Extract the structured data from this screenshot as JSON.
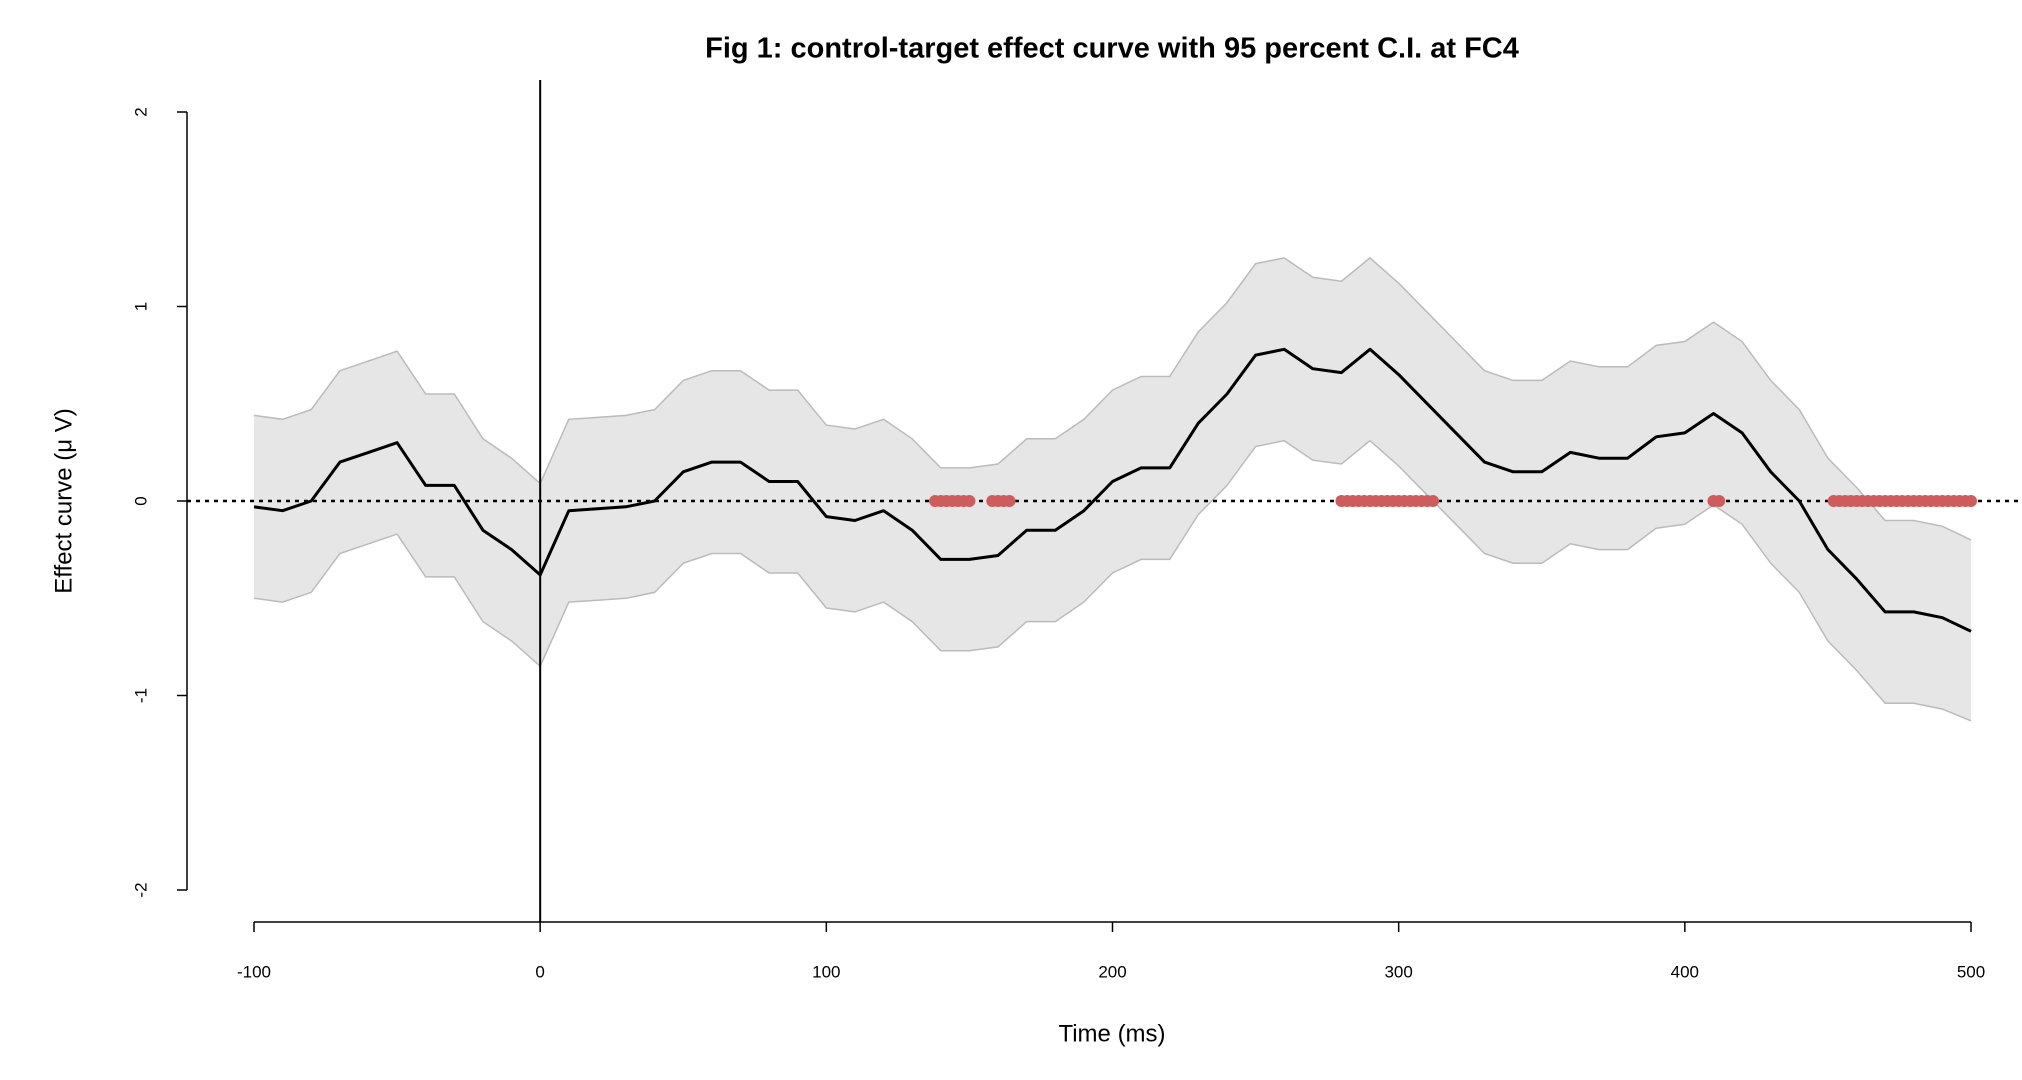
{
  "chart_data": {
    "type": "line",
    "title": "Fig 1: control-target effect curve with 95 percent C.I. at FC4",
    "x_label": "Time (ms)",
    "y_label": "Effect curve (μ V)",
    "x": [
      -100,
      -90,
      -80,
      -70,
      -60,
      -50,
      -40,
      -30,
      -20,
      -10,
      0,
      10,
      20,
      30,
      40,
      50,
      60,
      70,
      80,
      90,
      100,
      110,
      120,
      130,
      140,
      150,
      160,
      170,
      180,
      190,
      200,
      210,
      220,
      230,
      240,
      250,
      260,
      270,
      280,
      290,
      300,
      310,
      320,
      330,
      340,
      350,
      360,
      370,
      380,
      390,
      400,
      410,
      420,
      430,
      440,
      450,
      460,
      470,
      480,
      490,
      500
    ],
    "values": [
      -0.03,
      -0.05,
      0.0,
      0.2,
      0.25,
      0.3,
      0.08,
      0.08,
      -0.15,
      -0.25,
      -0.38,
      -0.05,
      -0.04,
      -0.03,
      0.0,
      0.15,
      0.2,
      0.2,
      0.1,
      0.1,
      -0.08,
      -0.1,
      -0.05,
      -0.15,
      -0.3,
      -0.3,
      -0.28,
      -0.15,
      -0.15,
      -0.05,
      0.1,
      0.17,
      0.17,
      0.4,
      0.55,
      0.75,
      0.78,
      0.68,
      0.66,
      0.78,
      0.65,
      0.5,
      0.35,
      0.2,
      0.15,
      0.15,
      0.25,
      0.22,
      0.22,
      0.33,
      0.35,
      0.45,
      0.35,
      0.15,
      0.0,
      -0.25,
      -0.4,
      -0.57,
      -0.57,
      -0.6,
      -0.67
    ],
    "color": "#000000",
    "ci_upper": [
      0.44,
      0.42,
      0.47,
      0.67,
      0.72,
      0.77,
      0.55,
      0.55,
      0.32,
      0.22,
      0.09,
      0.42,
      0.43,
      0.44,
      0.47,
      0.62,
      0.67,
      0.67,
      0.57,
      0.57,
      0.39,
      0.37,
      0.42,
      0.32,
      0.17,
      0.17,
      0.19,
      0.32,
      0.32,
      0.42,
      0.57,
      0.64,
      0.64,
      0.87,
      1.02,
      1.22,
      1.25,
      1.15,
      1.13,
      1.25,
      1.12,
      0.97,
      0.82,
      0.67,
      0.62,
      0.62,
      0.72,
      0.69,
      0.69,
      0.8,
      0.82,
      0.92,
      0.82,
      0.62,
      0.47,
      0.22,
      0.07,
      -0.1,
      -0.1,
      -0.13,
      -0.2
    ],
    "ci_lower": [
      -0.5,
      -0.52,
      -0.47,
      -0.27,
      -0.22,
      -0.17,
      -0.39,
      -0.39,
      -0.62,
      -0.72,
      -0.85,
      -0.52,
      -0.51,
      -0.5,
      -0.47,
      -0.32,
      -0.27,
      -0.27,
      -0.37,
      -0.37,
      -0.55,
      -0.57,
      -0.52,
      -0.62,
      -0.77,
      -0.77,
      -0.75,
      -0.62,
      -0.62,
      -0.52,
      -0.37,
      -0.3,
      -0.3,
      -0.07,
      0.08,
      0.28,
      0.31,
      0.21,
      0.19,
      0.31,
      0.18,
      0.03,
      -0.12,
      -0.27,
      -0.32,
      -0.32,
      -0.22,
      -0.25,
      -0.25,
      -0.14,
      -0.12,
      -0.02,
      -0.12,
      -0.32,
      -0.47,
      -0.72,
      -0.87,
      -1.04,
      -1.04,
      -1.07,
      -1.13
    ],
    "ci_color": "#e6e6e6",
    "significant": {
      "color": "#cd5c5c",
      "x": [
        138,
        140,
        142,
        144,
        146,
        148,
        150,
        158,
        160,
        162,
        164,
        280,
        282,
        284,
        286,
        288,
        290,
        292,
        294,
        296,
        298,
        300,
        302,
        304,
        306,
        308,
        310,
        312,
        410,
        412,
        452,
        454,
        456,
        458,
        460,
        462,
        464,
        466,
        468,
        470,
        472,
        474,
        476,
        478,
        480,
        482,
        484,
        486,
        488,
        490,
        492,
        494,
        496,
        498,
        500
      ],
      "values": [
        0,
        0,
        0,
        0,
        0,
        0,
        0,
        0,
        0,
        0,
        0,
        0,
        0,
        0,
        0,
        0,
        0,
        0,
        0,
        0,
        0,
        0,
        0,
        0,
        0,
        0,
        0,
        0,
        0,
        0,
        0,
        0,
        0,
        0,
        0,
        0,
        0,
        0,
        0,
        0,
        0,
        0,
        0,
        0,
        0,
        0,
        0,
        0,
        0,
        0,
        0,
        0,
        0,
        0,
        0
      ]
    },
    "hline": 0,
    "vline": 0,
    "xlim": [
      -100,
      500
    ],
    "xticks": [
      -100,
      0,
      100,
      200,
      300,
      400,
      500
    ],
    "ylim": [
      -2,
      2
    ],
    "yticks": [
      -2,
      -1,
      0,
      1,
      2
    ]
  }
}
